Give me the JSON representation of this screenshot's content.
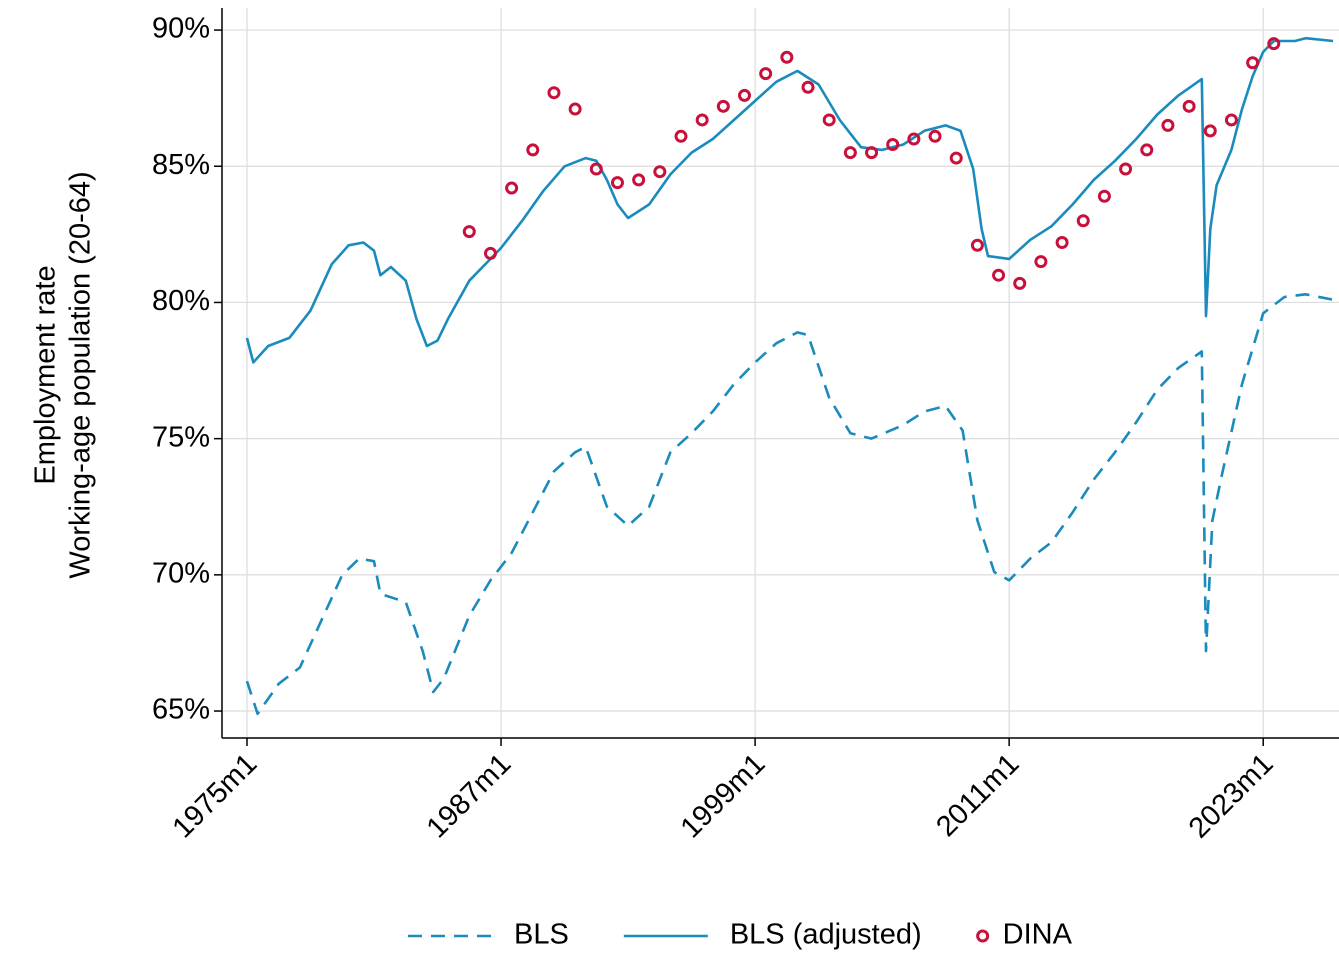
{
  "chart_data": {
    "type": "line",
    "ylabel": [
      "Employment rate",
      "Working-age population (20-64)"
    ],
    "xlim": [
      1973.82,
      2026.58
    ],
    "ylim": [
      64.01,
      90.81
    ],
    "xticks": [
      {
        "value": 1975,
        "label": "1975m1"
      },
      {
        "value": 1987,
        "label": "1987m1"
      },
      {
        "value": 1999,
        "label": "1999m1"
      },
      {
        "value": 2011,
        "label": "2011m1"
      },
      {
        "value": 2023,
        "label": "2023m1"
      }
    ],
    "yticks": [
      {
        "value": 65,
        "label": "65%"
      },
      {
        "value": 70,
        "label": "70%"
      },
      {
        "value": 75,
        "label": "75%"
      },
      {
        "value": 80,
        "label": "80%"
      },
      {
        "value": 85,
        "label": "85%"
      },
      {
        "value": 90,
        "label": "90%"
      }
    ],
    "grid": true,
    "legend": "bottom",
    "series": [
      {
        "name": "BLS",
        "color": "#1a8bbd",
        "line_style": "dashed",
        "x": [
          1975,
          1975.5,
          1976.5,
          1977.5,
          1978.5,
          1979.5,
          1980.3,
          1981,
          1981.3,
          1982.5,
          1983.3,
          1983.8,
          1984.3,
          1985.5,
          1986.5,
          1987.5,
          1988.5,
          1989.5,
          1990.5,
          1991,
          1992,
          1993,
          1994,
          1995,
          1996,
          1997,
          1998,
          1999,
          2000,
          2001,
          2001.5,
          2002.5,
          2003.5,
          2004.5,
          2006,
          2007,
          2008,
          2008.8,
          2009.5,
          2010.3,
          2011,
          2012,
          2013,
          2014,
          2015,
          2016,
          2017,
          2018,
          2019,
          2020.1,
          2020.3,
          2020.6,
          2021,
          2022,
          2023,
          2024,
          2025,
          2026.3
        ],
        "values": [
          66.1,
          64.9,
          66.0,
          66.6,
          68.3,
          70.0,
          70.6,
          70.5,
          69.3,
          69.0,
          67.2,
          65.7,
          66.2,
          68.5,
          69.8,
          70.8,
          72.3,
          73.8,
          74.5,
          74.7,
          72.5,
          71.8,
          72.5,
          74.5,
          75.2,
          76.0,
          77.0,
          77.8,
          78.5,
          78.9,
          78.8,
          76.5,
          75.2,
          75.0,
          75.5,
          76.0,
          76.2,
          75.3,
          72.0,
          70.1,
          69.8,
          70.6,
          71.2,
          72.3,
          73.5,
          74.5,
          75.6,
          76.8,
          77.6,
          78.2,
          67.2,
          72.0,
          73.5,
          77.0,
          79.6,
          80.2,
          80.3,
          80.1
        ]
      },
      {
        "name": "BLS (adjusted)",
        "color": "#1a8bbd",
        "line_style": "solid",
        "x": [
          1975,
          1975.3,
          1976,
          1977,
          1978,
          1979,
          1979.8,
          1980.5,
          1981,
          1981.3,
          1981.8,
          1982.5,
          1983,
          1983.5,
          1984,
          1984.5,
          1985.5,
          1986.5,
          1987,
          1988,
          1989,
          1990,
          1991,
          1991.5,
          1992,
          1992.5,
          1993,
          1994,
          1995,
          1996,
          1997,
          1998,
          1999,
          2000,
          2001,
          2002,
          2003,
          2004,
          2005,
          2006,
          2007,
          2008,
          2008.7,
          2009.3,
          2009.7,
          2010,
          2011,
          2012,
          2013,
          2014,
          2015,
          2016,
          2017,
          2018,
          2019,
          2020.1,
          2020.3,
          2020.5,
          2020.8,
          2021.5,
          2022,
          2022.5,
          2023,
          2023.5,
          2024.5,
          2025,
          2026.3
        ],
        "values": [
          78.7,
          77.8,
          78.4,
          78.7,
          79.7,
          81.4,
          82.1,
          82.2,
          81.9,
          81.0,
          81.3,
          80.8,
          79.4,
          78.4,
          78.6,
          79.4,
          80.8,
          81.6,
          82.0,
          83.0,
          84.1,
          85.0,
          85.3,
          85.2,
          84.5,
          83.6,
          83.1,
          83.6,
          84.7,
          85.5,
          86.0,
          86.7,
          87.4,
          88.1,
          88.5,
          88.0,
          86.7,
          85.7,
          85.6,
          85.8,
          86.3,
          86.5,
          86.3,
          84.9,
          82.7,
          81.7,
          81.6,
          82.3,
          82.8,
          83.6,
          84.5,
          85.2,
          86.0,
          86.9,
          87.6,
          88.2,
          79.5,
          82.7,
          84.3,
          85.6,
          87.1,
          88.3,
          89.2,
          89.6,
          89.6,
          89.7,
          89.6
        ]
      },
      {
        "name": "DINA",
        "color": "#c8103a",
        "line_style": "markers",
        "x": [
          1985.5,
          1986.5,
          1987.5,
          1988.5,
          1989.5,
          1990.5,
          1991.5,
          1992.5,
          1993.5,
          1994.5,
          1995.5,
          1996.5,
          1997.5,
          1998.5,
          1999.5,
          2000.5,
          2001.5,
          2002.5,
          2003.5,
          2004.5,
          2005.5,
          2006.5,
          2007.5,
          2008.5,
          2009.5,
          2010.5,
          2011.5,
          2012.5,
          2013.5,
          2014.5,
          2015.5,
          2016.5,
          2017.5,
          2018.5,
          2019.5,
          2020.5,
          2021.5,
          2022.5,
          2023.5
        ],
        "values": [
          82.6,
          81.8,
          84.2,
          85.6,
          87.7,
          87.1,
          84.9,
          84.4,
          84.5,
          84.8,
          86.1,
          86.7,
          87.2,
          87.6,
          88.4,
          89.0,
          87.9,
          86.7,
          85.5,
          85.5,
          85.8,
          86.0,
          86.1,
          85.3,
          82.1,
          81.0,
          80.7,
          81.5,
          82.2,
          83.0,
          83.9,
          84.9,
          85.6,
          86.5,
          87.2,
          86.3,
          86.7,
          88.8,
          89.5
        ]
      }
    ]
  }
}
